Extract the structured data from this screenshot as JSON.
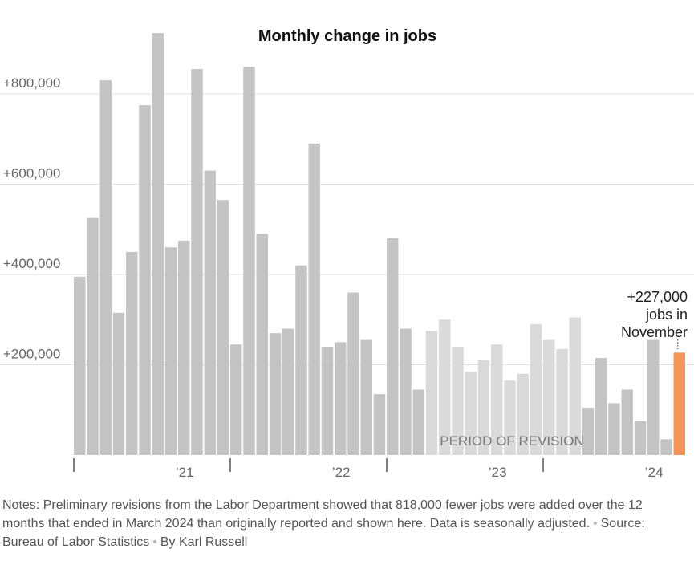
{
  "chart_data": {
    "type": "bar",
    "title": "Monthly change in jobs",
    "xlabel": "",
    "ylabel": "",
    "ylim": [
      0,
      940000
    ],
    "yticks": [
      {
        "value": 200000,
        "label": "+200,000"
      },
      {
        "value": 400000,
        "label": "+400,000"
      },
      {
        "value": 600000,
        "label": "+600,000"
      },
      {
        "value": 800000,
        "label": "+800,000"
      }
    ],
    "year_labels": [
      {
        "label": "’21",
        "between": [
          3,
          15
        ]
      },
      {
        "label": "’22",
        "between": [
          15,
          27
        ]
      },
      {
        "label": "’23",
        "between": [
          27,
          39
        ]
      },
      {
        "label": "’24",
        "between": [
          39,
          51
        ]
      }
    ],
    "grid": true,
    "values": [
      395000,
      525000,
      830000,
      315000,
      450000,
      775000,
      935000,
      460000,
      475000,
      855000,
      630000,
      565000,
      245000,
      860000,
      490000,
      270000,
      280000,
      420000,
      690000,
      240000,
      250000,
      360000,
      255000,
      135000,
      480000,
      280000,
      145000,
      275000,
      300000,
      240000,
      185000,
      210000,
      245000,
      165000,
      180000,
      290000,
      255000,
      235000,
      305000,
      105000,
      215000,
      115000,
      145000,
      75000,
      255000,
      35000,
      227000
    ],
    "revision_period": {
      "start": 27,
      "end": 38,
      "label": "PERIOD OF REVISION"
    },
    "highlight": {
      "index": 46,
      "label_lines": [
        "+227,000",
        "jobs in",
        "November"
      ]
    },
    "colors": {
      "bar": "#c4c4c4",
      "revision": "#dadada",
      "highlight": "#f5955c",
      "grid": "#e0e0e0",
      "axis_text": "#666666",
      "title": "#111111"
    }
  },
  "notes": {
    "text": "Notes: Preliminary revisions from the Labor Department showed that 818,000 fewer jobs were added over the 12 months that ended in March 2024 than originally reported and shown here. Data is seasonally adjusted.",
    "source": "Source: Bureau of Labor Statistics",
    "credit": "By Karl Russell"
  }
}
